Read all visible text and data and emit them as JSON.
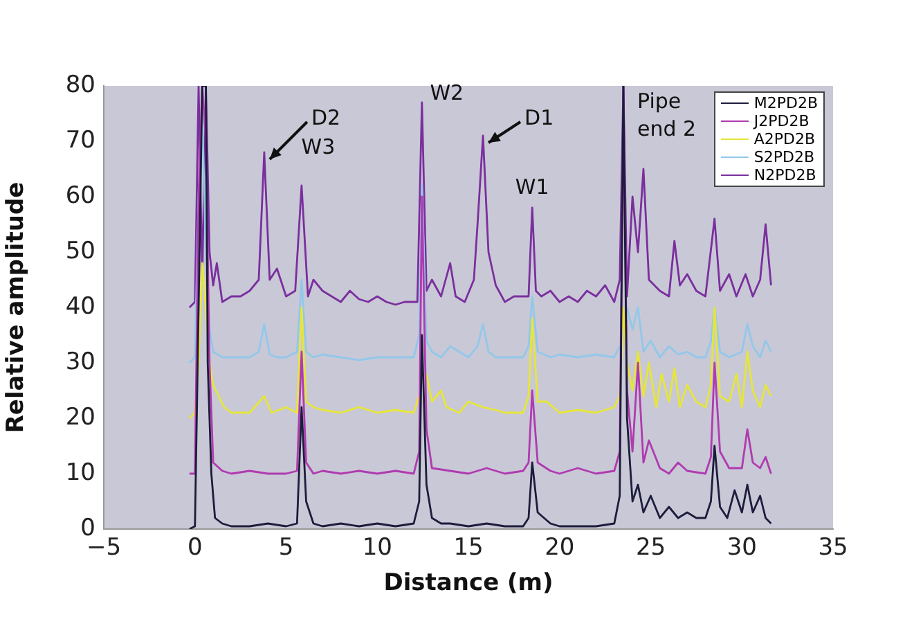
{
  "chart_data": {
    "type": "line",
    "xlabel": "Distance (m)",
    "ylabel": "Relative amplitude",
    "xlim": [
      -5,
      35
    ],
    "xticks": [
      -5,
      0,
      5,
      10,
      15,
      20,
      25,
      30,
      35
    ],
    "ylim": [
      0,
      80
    ],
    "yticks": [
      0,
      10,
      20,
      30,
      40,
      50,
      60,
      70,
      80
    ],
    "grid": false,
    "legend": "top right",
    "marker": "none",
    "line_style": "solid",
    "series": [
      {
        "name": "M2PD2B",
        "color": "#1c1c3c",
        "x": [
          -0.3,
          0,
          0.2,
          0.4,
          0.6,
          0.7,
          0.9,
          1.1,
          1.5,
          2,
          3,
          4,
          5,
          5.6,
          5.85,
          6.1,
          6.5,
          7,
          8,
          9,
          10,
          11,
          12,
          12.3,
          12.45,
          12.7,
          13,
          13.5,
          14,
          15,
          16,
          17,
          18,
          18.3,
          18.5,
          18.8,
          19.5,
          20,
          21,
          22,
          23,
          23.3,
          23.5,
          23.7,
          24,
          24.3,
          24.6,
          25,
          25.5,
          26,
          26.5,
          27,
          27.5,
          28,
          28.3,
          28.5,
          28.8,
          29.2,
          29.6,
          30,
          30.3,
          30.6,
          31,
          31.3,
          31.6
        ],
        "values": [
          0,
          0.5,
          40,
          80,
          80,
          30,
          10,
          2,
          1,
          0.5,
          0.5,
          1,
          0.5,
          1,
          22,
          5,
          1,
          0.5,
          1,
          0.5,
          1,
          0.5,
          1,
          5,
          35,
          8,
          2,
          1,
          1,
          0.5,
          1,
          0.5,
          0.5,
          2,
          12,
          3,
          1,
          0.5,
          0.5,
          0.5,
          1,
          6,
          80,
          20,
          5,
          8,
          3,
          6,
          2,
          4,
          2,
          3,
          2,
          2,
          5,
          15,
          4,
          2,
          7,
          3,
          8,
          3,
          6,
          2,
          1
        ]
      },
      {
        "name": "J2PD2B",
        "color": "#b03ab0",
        "x": [
          -0.3,
          0,
          0.2,
          0.4,
          0.6,
          0.8,
          1,
          1.5,
          2,
          3,
          4,
          5,
          5.6,
          5.85,
          6.1,
          6.5,
          7,
          8,
          9,
          10,
          11,
          12,
          12.3,
          12.45,
          12.7,
          13,
          14,
          15,
          16,
          17,
          18,
          18.3,
          18.5,
          18.8,
          19.5,
          20,
          21,
          22,
          23,
          23.3,
          23.5,
          23.7,
          24,
          24.3,
          24.6,
          24.9,
          25.5,
          26,
          26.5,
          27,
          28,
          28.3,
          28.5,
          28.8,
          29.3,
          30,
          30.3,
          30.6,
          31,
          31.3,
          31.6
        ],
        "values": [
          10,
          10,
          60,
          80,
          70,
          30,
          12,
          10.5,
          10,
          10.5,
          10,
          10,
          10.5,
          32,
          12,
          10,
          10.5,
          10,
          10.5,
          10,
          10.5,
          10,
          14,
          60,
          18,
          11,
          10.5,
          10,
          11,
          10,
          10.5,
          12,
          25,
          12,
          10.5,
          10,
          11,
          10,
          10.5,
          14,
          80,
          25,
          14,
          30,
          12,
          16,
          11,
          10,
          12,
          10.5,
          10,
          13,
          30,
          14,
          11,
          11,
          18,
          12,
          11,
          13,
          10
        ]
      },
      {
        "name": "A2PD2B",
        "color": "#e6e63a",
        "x": [
          -0.3,
          0,
          0.2,
          0.4,
          0.6,
          0.8,
          1,
          1.3,
          1.6,
          2,
          3,
          3.8,
          4.2,
          5,
          5.6,
          5.85,
          6.1,
          6.5,
          7,
          8,
          9,
          10,
          11,
          12,
          12.3,
          12.45,
          12.7,
          13,
          13.5,
          13.8,
          14.5,
          15,
          15.8,
          16.5,
          17,
          18,
          18.3,
          18.5,
          18.8,
          19.3,
          20,
          21,
          22,
          23,
          23.3,
          23.5,
          23.7,
          24,
          24.3,
          24.6,
          24.9,
          25.3,
          25.6,
          26,
          26.3,
          26.6,
          27,
          27.5,
          28,
          28.3,
          28.5,
          28.8,
          29.3,
          29.7,
          30,
          30.3,
          30.6,
          31,
          31.3,
          31.6
        ],
        "values": [
          20,
          21,
          30,
          48,
          40,
          30,
          26,
          24,
          22,
          21,
          21,
          24,
          21,
          22,
          21,
          40,
          23,
          22,
          21.5,
          21,
          22,
          21,
          21.5,
          21,
          24,
          null,
          28,
          23,
          25,
          22,
          21,
          23,
          22,
          21.5,
          21,
          21,
          24,
          38,
          23,
          23,
          21,
          21.5,
          21,
          22,
          24,
          40,
          30,
          25,
          32,
          24,
          30,
          22,
          28,
          23,
          29,
          22,
          26,
          23,
          22,
          26,
          40,
          24,
          23,
          28,
          22,
          32,
          25,
          22,
          26,
          24
        ]
      },
      {
        "name": "S2PD2B",
        "color": "#92c8ea",
        "x": [
          -0.3,
          0,
          0.2,
          0.4,
          0.6,
          0.8,
          1,
          1.5,
          2,
          3,
          3.5,
          3.8,
          4.1,
          4.5,
          5,
          5.6,
          5.85,
          6.1,
          6.5,
          7,
          8,
          9,
          10,
          11,
          12,
          12.3,
          12.45,
          12.7,
          13,
          13.5,
          14,
          15,
          15.5,
          15.8,
          16.1,
          16.5,
          17,
          18,
          18.3,
          18.5,
          18.8,
          19.5,
          20,
          21,
          22,
          23,
          23.3,
          23.5,
          23.7,
          24,
          24.3,
          24.6,
          25,
          25.5,
          26,
          26.5,
          27,
          27.5,
          28,
          28.3,
          28.5,
          28.8,
          29.3,
          30,
          30.3,
          30.6,
          31,
          31.3,
          31.6
        ],
        "values": [
          30,
          31,
          60,
          75,
          50,
          36,
          32,
          31,
          31,
          31,
          32,
          37,
          31.5,
          31,
          31,
          32,
          45,
          32,
          31,
          31.5,
          31,
          30.5,
          31,
          31,
          31,
          35,
          62,
          34,
          32,
          31,
          33,
          31,
          33,
          37,
          32,
          31,
          31,
          31,
          33,
          42,
          32,
          31,
          31.5,
          31,
          31.5,
          31,
          33,
          null,
          40,
          36,
          40,
          32,
          34,
          31,
          33,
          31.5,
          32,
          31,
          31,
          34,
          40,
          32,
          31,
          32,
          37,
          33,
          31,
          34,
          32
        ]
      },
      {
        "name": "N2PD2B",
        "color": "#7a2f9e",
        "x": [
          -0.3,
          0,
          0.2,
          0.4,
          0.6,
          0.8,
          1,
          1.2,
          1.5,
          2,
          2.5,
          3,
          3.5,
          3.8,
          4.1,
          4.5,
          5,
          5.5,
          5.85,
          6.2,
          6.5,
          7,
          7.5,
          8,
          8.5,
          9,
          9.5,
          10,
          10.5,
          11,
          11.5,
          12.2,
          12.45,
          12.7,
          13,
          13.5,
          14,
          14.3,
          14.8,
          15.3,
          15.5,
          15.8,
          16.1,
          16.5,
          17,
          17.5,
          18.3,
          18.5,
          18.7,
          19,
          19.5,
          20,
          20.5,
          21,
          21.5,
          22,
          22.5,
          23,
          23.3,
          23.5,
          23.7,
          24,
          24.3,
          24.6,
          24.9,
          25.5,
          26,
          26.3,
          26.6,
          27,
          27.5,
          28,
          28.5,
          28.8,
          29.3,
          29.7,
          30.2,
          30.6,
          31,
          31.3,
          31.6
        ],
        "values": [
          40,
          41,
          80,
          45,
          80,
          50,
          44,
          48,
          41,
          42,
          42,
          43,
          45,
          68,
          45,
          47,
          42,
          43,
          62,
          42,
          45,
          43,
          42,
          41,
          43,
          41.5,
          41,
          42,
          41,
          40.5,
          41,
          41,
          77,
          43,
          45,
          42,
          48,
          42,
          41,
          45,
          55,
          71,
          50,
          44,
          41,
          42,
          42,
          58,
          43,
          42,
          43,
          41,
          42,
          41,
          43,
          42,
          44,
          41,
          45,
          80,
          42,
          60,
          50,
          65,
          45,
          43,
          42,
          52,
          44,
          46,
          43,
          42,
          56,
          43,
          46,
          42,
          46,
          42,
          45,
          55,
          44
        ]
      }
    ],
    "annotations": [
      {
        "text": "D2",
        "x": 3.8,
        "y": 68
      },
      {
        "text": "W3",
        "x": 5.85,
        "y": 62
      },
      {
        "text": "W2",
        "x": 12.45,
        "y": 77
      },
      {
        "text": "D1",
        "x": 15.8,
        "y": 71
      },
      {
        "text": "W1",
        "x": 18.5,
        "y": 58
      },
      {
        "text": "Pipe end 2",
        "x": 23.5,
        "y": 80
      }
    ]
  }
}
